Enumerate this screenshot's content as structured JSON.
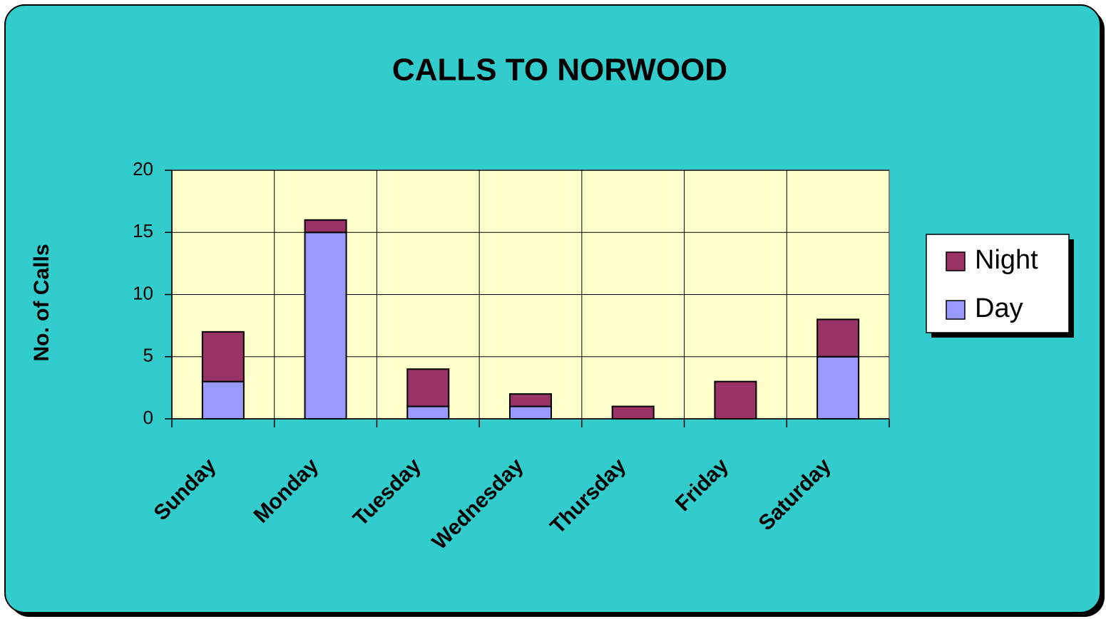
{
  "chart_data": {
    "type": "stacked_bar",
    "title": "CALLS TO NORWOOD",
    "y_label": "No. of Calls",
    "categories": [
      "Sunday",
      "Monday",
      "Tuesday",
      "Wednesday",
      "Thursday",
      "Friday",
      "Saturday"
    ],
    "series": [
      {
        "name": "Day",
        "color": "#9999ff",
        "values": [
          3,
          15,
          1,
          1,
          0,
          0,
          5
        ]
      },
      {
        "name": "Night",
        "color": "#993366",
        "values": [
          4,
          1,
          3,
          1,
          1,
          3,
          3
        ]
      }
    ],
    "ylim": [
      0,
      20
    ],
    "yticks": [
      0,
      5,
      10,
      15,
      20
    ],
    "grid": true,
    "legend": "right"
  }
}
